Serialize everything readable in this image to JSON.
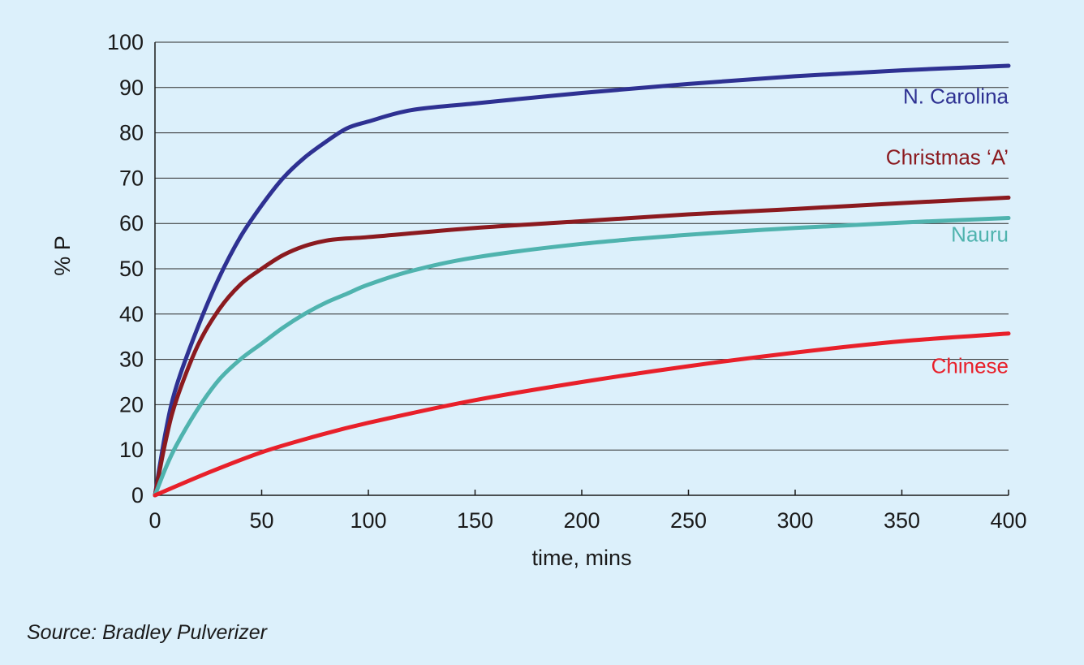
{
  "chart_data": {
    "type": "line",
    "xlabel": "time, mins",
    "ylabel": "% P",
    "xlim": [
      0,
      400
    ],
    "ylim": [
      0,
      100
    ],
    "xticks": [
      0,
      50,
      100,
      150,
      200,
      250,
      300,
      350,
      400
    ],
    "yticks": [
      0,
      10,
      20,
      30,
      40,
      50,
      60,
      70,
      80,
      90,
      100
    ],
    "grid": "horizontal",
    "legend": "inline labels at right",
    "series": [
      {
        "name": "N. Carolina",
        "color": "#2e3192",
        "x": [
          0,
          5,
          10,
          20,
          30,
          40,
          50,
          60,
          70,
          80,
          90,
          100,
          120,
          150,
          200,
          250,
          300,
          350,
          400
        ],
        "y": [
          0,
          14,
          24,
          37,
          48,
          57,
          64,
          70,
          74.5,
          78,
          81,
          82.5,
          85,
          86.5,
          88.8,
          90.8,
          92.5,
          93.8,
          94.8
        ]
      },
      {
        "name": "Christmas ‘A’",
        "color": "#8b1a1f",
        "x": [
          0,
          5,
          10,
          20,
          30,
          40,
          50,
          60,
          70,
          80,
          90,
          100,
          150,
          200,
          250,
          300,
          350,
          400
        ],
        "y": [
          0,
          12,
          21,
          33,
          41,
          46.5,
          50,
          53,
          55,
          56.2,
          56.7,
          57,
          59,
          60.5,
          62,
          63.2,
          64.5,
          65.7
        ]
      },
      {
        "name": "Nauru",
        "color": "#4fb3ae",
        "x": [
          0,
          5,
          10,
          20,
          30,
          40,
          50,
          60,
          70,
          80,
          90,
          100,
          120,
          150,
          200,
          250,
          300,
          350,
          400
        ],
        "y": [
          0,
          6,
          11,
          19,
          25.5,
          30,
          33.5,
          37,
          40,
          42.5,
          44.5,
          46.5,
          49.5,
          52.5,
          55.5,
          57.5,
          59,
          60.2,
          61.2
        ]
      },
      {
        "name": "Chinese",
        "color": "#e8202a",
        "x": [
          0,
          25,
          50,
          75,
          100,
          150,
          200,
          250,
          300,
          350,
          400
        ],
        "y": [
          0,
          5,
          9.5,
          13,
          16,
          21,
          25,
          28.5,
          31.5,
          34,
          35.7
        ]
      }
    ]
  },
  "source": "Source: Bradley Pulverizer"
}
